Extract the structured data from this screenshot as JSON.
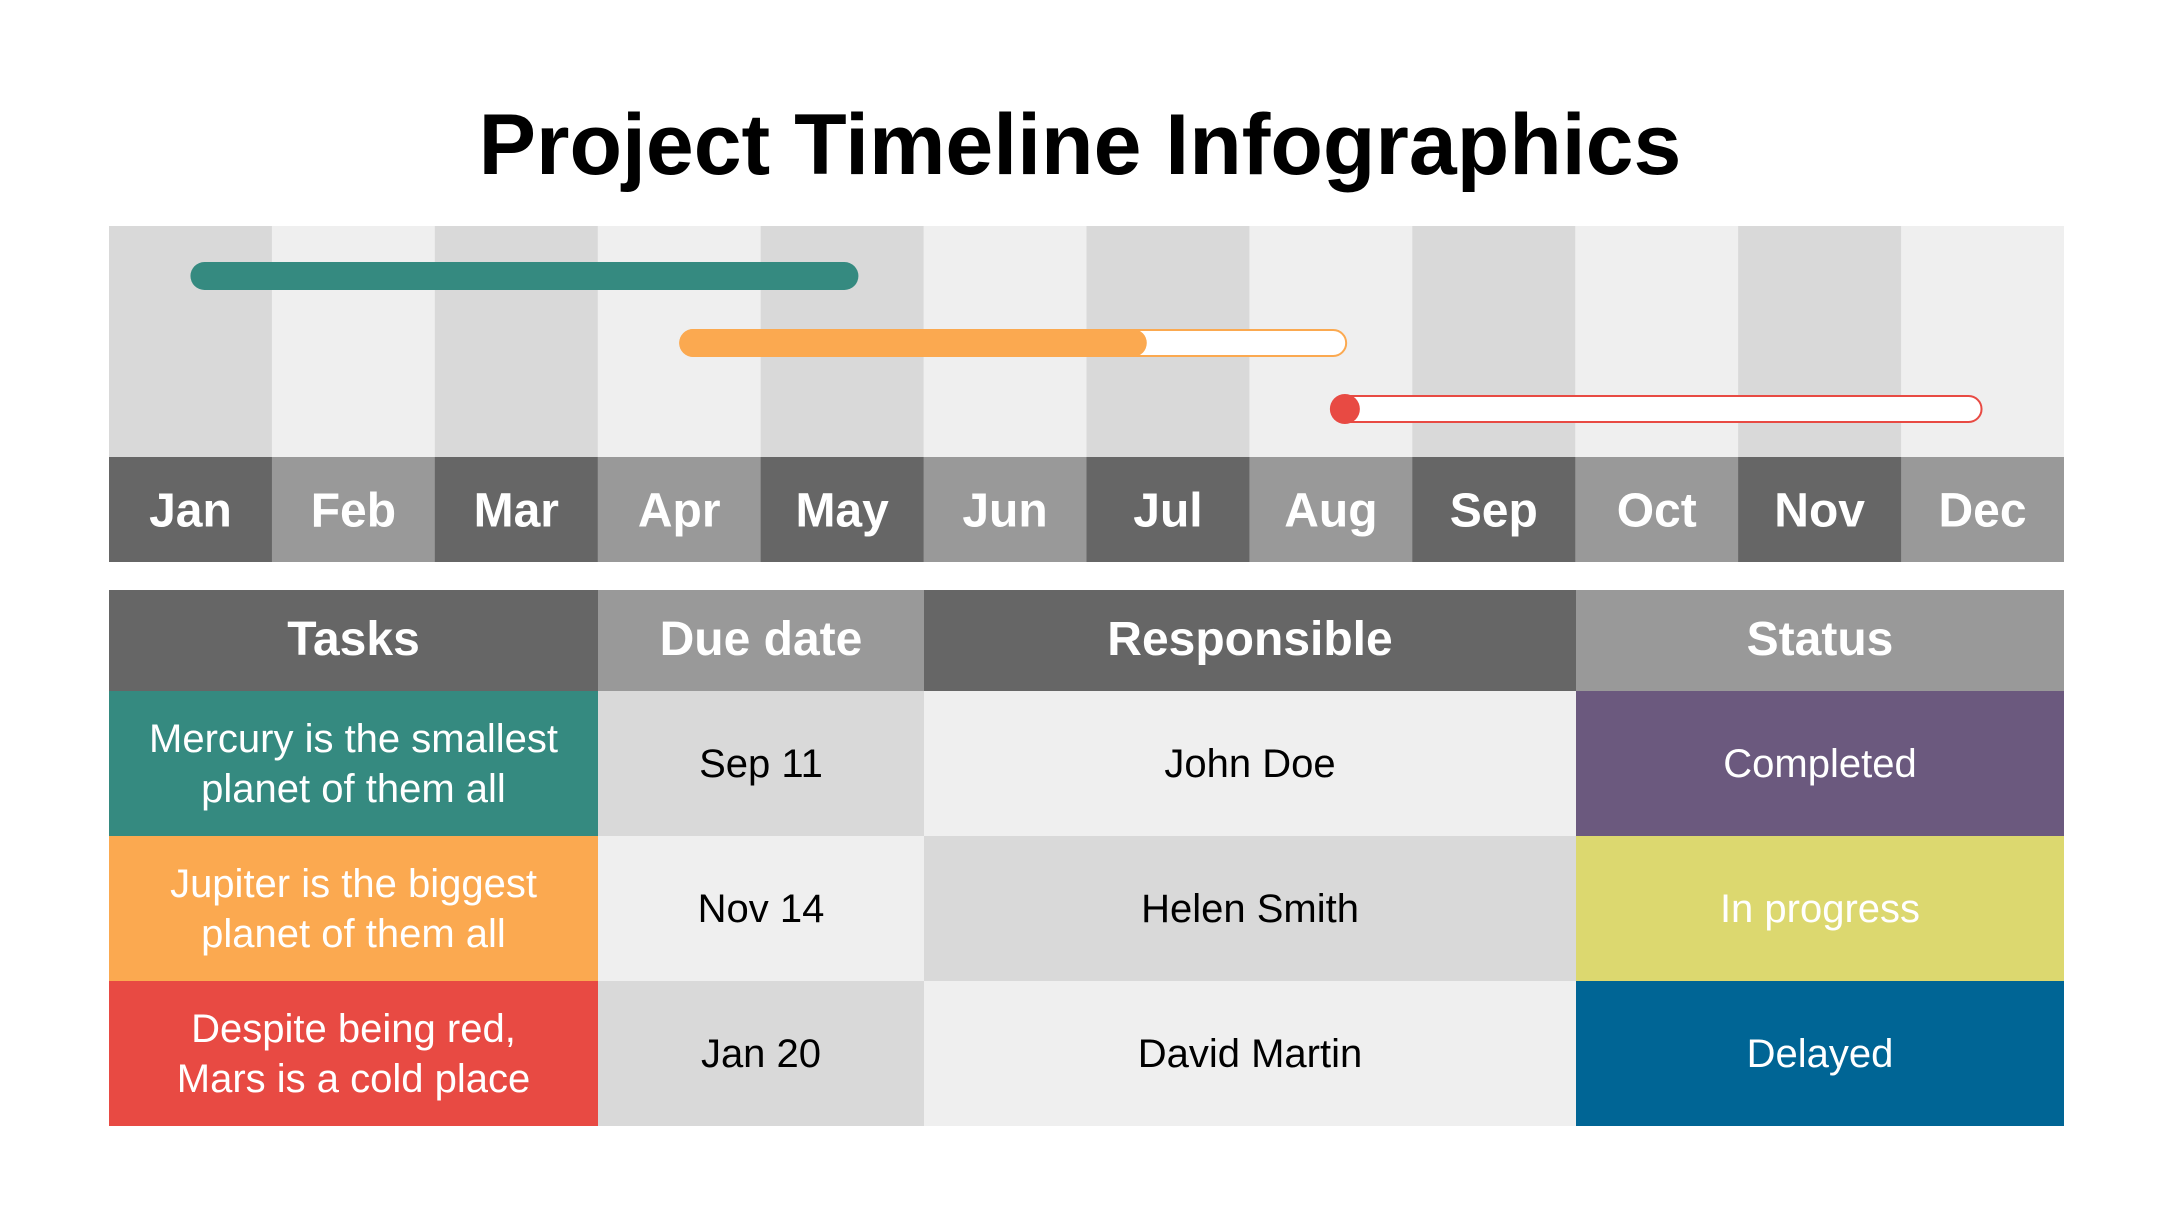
{
  "title": "Project Timeline Infographics",
  "chart_data": {
    "type": "gantt",
    "months": [
      "Jan",
      "Feb",
      "Mar",
      "Apr",
      "May",
      "Jun",
      "Jul",
      "Aug",
      "Sep",
      "Oct",
      "Nov",
      "Dec"
    ],
    "tasks": [
      {
        "task": "Mercury is the smallest planet of them all",
        "start_month": 1.0,
        "end_month": 5.1,
        "progress": 1.0,
        "color": "#358a80"
      },
      {
        "task": "Jupiter is the biggest planet of them all",
        "start_month": 4.0,
        "end_month": 8.1,
        "progress": 0.7,
        "color": "#fba950"
      },
      {
        "task": "Despite being red, Mars is a cold place",
        "start_month": 8.0,
        "end_month": 12.0,
        "progress": 0.0,
        "color": "#e84a43"
      }
    ],
    "colors": {
      "column_light": "#d9d9d9",
      "column_lighter": "#efefef",
      "month_dark": "#666666",
      "month_light": "#999999"
    }
  },
  "table": {
    "headers": {
      "tasks": "Tasks",
      "due": "Due date",
      "responsible": "Responsible",
      "status": "Status"
    },
    "rows": [
      {
        "task_line1": "Mercury is the smallest",
        "task_line2": "planet of them all",
        "due": "Sep 11",
        "responsible": "John Doe",
        "status": "Completed",
        "task_color": "#358a80",
        "status_color": "#6b597e"
      },
      {
        "task_line1": "Jupiter is the biggest",
        "task_line2": "planet of them all",
        "due": "Nov 14",
        "responsible": "Helen Smith",
        "status": "In progress",
        "task_color": "#fba950",
        "status_color": "#dcd86f"
      },
      {
        "task_line1": "Despite being red,",
        "task_line2": "Mars is a cold place",
        "due": "Jan 20",
        "responsible": "David Martin",
        "status": "Delayed",
        "task_color": "#e84a43",
        "status_color": "#006595"
      }
    ]
  }
}
